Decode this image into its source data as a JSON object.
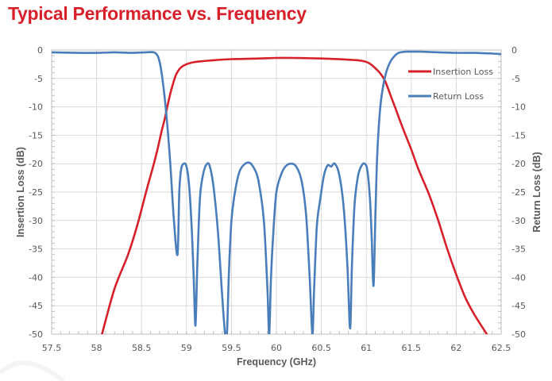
{
  "chart_data": {
    "type": "line",
    "title": "Typical Performance vs. Frequency",
    "xlabel": "Frequency (GHz)",
    "ylabel": "Insertion Loss (dB)",
    "y2label": "Return Loss (dB)",
    "xlim": [
      57.5,
      62.5
    ],
    "ylim": [
      -50,
      0
    ],
    "y2lim": [
      -50,
      0
    ],
    "grid": true,
    "legend_position": "top-right",
    "x_ticks": [
      "57.5",
      "58",
      "58.5",
      "59",
      "59.5",
      "60",
      "60.5",
      "61",
      "61.5",
      "62",
      "62.5"
    ],
    "x_tick_values": [
      57.5,
      58,
      58.5,
      59,
      59.5,
      60,
      60.5,
      61,
      61.5,
      62,
      62.5
    ],
    "y_ticks": [
      "0",
      "-5",
      "-10",
      "-15",
      "-20",
      "-25",
      "-30",
      "-35",
      "-40",
      "-45",
      "-50"
    ],
    "y_tick_values": [
      0,
      -5,
      -10,
      -15,
      -20,
      -25,
      -30,
      -35,
      -40,
      -45,
      -50
    ],
    "y2_ticks": [
      "0",
      "-5",
      "-10",
      "-15",
      "-20",
      "-25",
      "-30",
      "-35",
      "-40",
      "-45",
      "-50"
    ],
    "series": [
      {
        "name": "Insertion Loss",
        "axis": "left",
        "color": "#d7202a",
        "x": [
          58.06,
          58.2,
          58.35,
          58.45,
          58.55,
          58.62,
          58.67,
          58.72,
          58.76,
          58.8,
          58.84,
          58.88,
          58.93,
          59.0,
          59.1,
          59.3,
          59.5,
          59.8,
          60.0,
          60.2,
          60.5,
          60.8,
          60.95,
          61.03,
          61.1,
          61.16,
          61.21,
          61.27,
          61.33,
          61.4,
          61.5,
          61.58,
          61.7,
          61.8,
          61.9,
          62.0,
          62.1,
          62.2,
          62.34
        ],
        "values": [
          -50,
          -42,
          -36,
          -31,
          -25,
          -21,
          -18,
          -14.5,
          -12,
          -9,
          -6.5,
          -4.5,
          -3.2,
          -2.5,
          -2.1,
          -1.8,
          -1.6,
          -1.5,
          -1.4,
          -1.4,
          -1.5,
          -1.7,
          -1.9,
          -2.3,
          -3.2,
          -4.2,
          -5.5,
          -8,
          -10.5,
          -13.5,
          -17.5,
          -21,
          -25.5,
          -30,
          -35,
          -39.5,
          -43.5,
          -46.5,
          -50
        ]
      },
      {
        "name": "Return Loss",
        "axis": "right",
        "color": "#4a7ebb",
        "x": [
          57.5,
          57.8,
          58.0,
          58.2,
          58.4,
          58.55,
          58.65,
          58.7,
          58.74,
          58.78,
          58.82,
          58.86,
          58.9,
          58.92,
          58.94,
          58.97,
          59.0,
          59.03,
          59.06,
          59.08,
          59.1,
          59.12,
          59.15,
          59.19,
          59.23,
          59.26,
          59.3,
          59.35,
          59.4,
          59.43,
          59.45,
          59.47,
          59.5,
          59.55,
          59.6,
          59.68,
          59.74,
          59.8,
          59.86,
          59.9,
          59.92,
          59.94,
          59.97,
          60.0,
          60.05,
          60.1,
          60.16,
          60.22,
          60.28,
          60.33,
          60.37,
          60.4,
          60.42,
          60.45,
          60.49,
          60.53,
          60.57,
          60.61,
          60.65,
          60.7,
          60.75,
          60.79,
          60.82,
          60.84,
          60.87,
          60.91,
          60.95,
          60.98,
          61.01,
          61.04,
          61.06,
          61.08,
          61.1,
          61.12,
          61.15,
          61.18,
          61.22,
          61.27,
          61.33,
          61.38,
          61.45,
          61.6,
          61.8,
          62.0,
          62.2,
          62.5
        ],
        "values": [
          -0.4,
          -0.5,
          -0.5,
          -0.4,
          -0.5,
          -0.4,
          -0.5,
          -2,
          -6,
          -12,
          -20,
          -30,
          -36,
          -25,
          -21,
          -20,
          -20.5,
          -24,
          -32,
          -40,
          -48.5,
          -38,
          -26,
          -21.5,
          -20,
          -20.5,
          -24,
          -32,
          -44,
          -50,
          -50,
          -40,
          -30,
          -24,
          -21,
          -19.8,
          -20.5,
          -23,
          -30,
          -42,
          -50,
          -40,
          -31,
          -25,
          -22,
          -20.5,
          -20,
          -20.5,
          -23,
          -29,
          -40,
          -50,
          -42,
          -31,
          -26,
          -22,
          -20.3,
          -20.5,
          -20,
          -22,
          -28,
          -38,
          -49,
          -38,
          -27,
          -22,
          -20.3,
          -20,
          -21,
          -26,
          -33,
          -41.5,
          -30,
          -19,
          -11,
          -7,
          -4,
          -2,
          -0.8,
          -0.4,
          -0.3,
          -0.3,
          -0.4,
          -0.5,
          -0.5,
          -0.7
        ]
      }
    ]
  }
}
